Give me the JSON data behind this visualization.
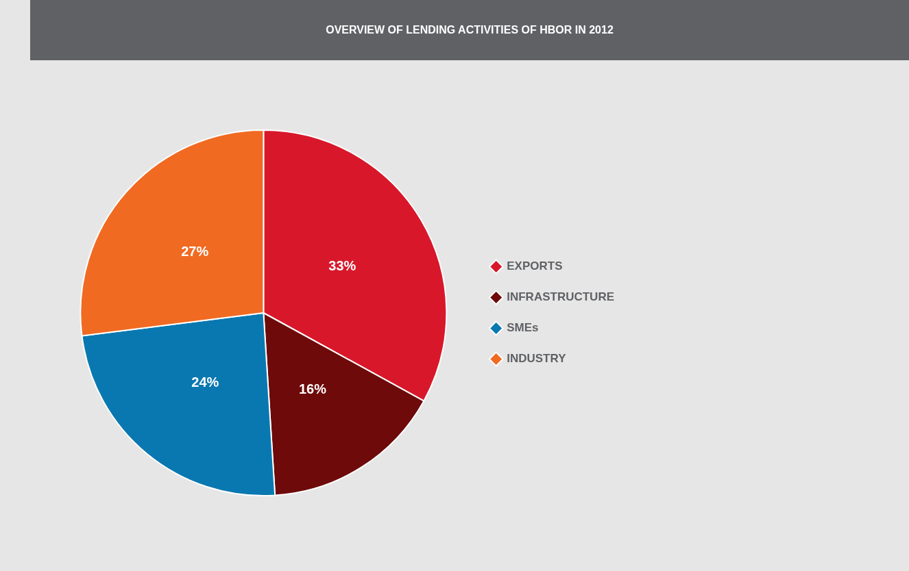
{
  "chart_data": {
    "type": "pie",
    "title": "OVERVIEW OF LENDING ACTIVITIES OF HBOR IN 2012",
    "categories": [
      "EXPORTS",
      "INFRASTRUCTURE",
      "SMEs",
      "INDUSTRY"
    ],
    "values": [
      33,
      16,
      24,
      27
    ],
    "value_labels": [
      "33%",
      "16%",
      "24%",
      "27%"
    ],
    "colors": [
      "#d8182a",
      "#6e0a0a",
      "#0a78b0",
      "#f06a22"
    ],
    "legend": "right"
  }
}
